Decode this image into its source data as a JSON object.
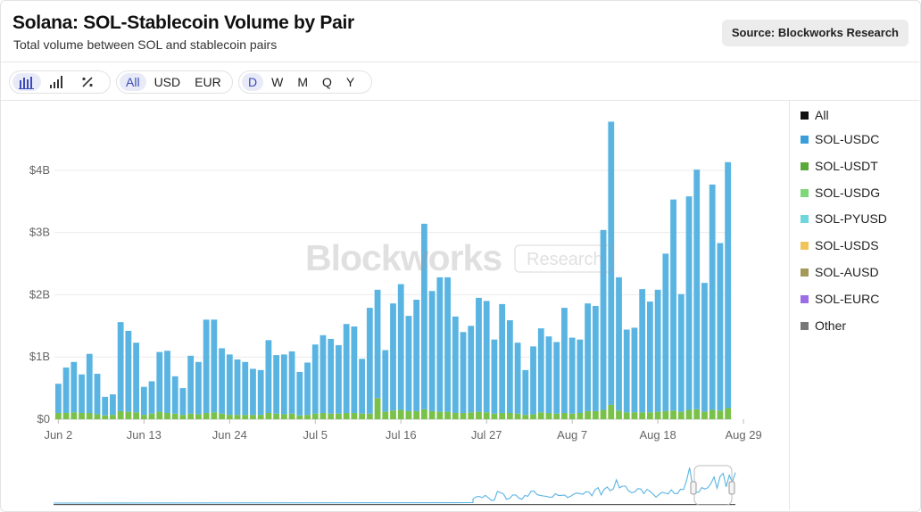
{
  "header": {
    "title": "Solana: SOL-Stablecoin Volume by Pair",
    "subtitle": "Total volume between SOL and stablecoin pairs",
    "source": "Source: Blockworks Research"
  },
  "toolbar": {
    "chart_modes": [
      {
        "icon": "bar-chart-icon",
        "active": true
      },
      {
        "icon": "signal-bars-icon",
        "active": false
      },
      {
        "icon": "percent-icon",
        "active": false
      }
    ],
    "currencies": [
      {
        "label": "All",
        "active": true
      },
      {
        "label": "USD",
        "active": false
      },
      {
        "label": "EUR",
        "active": false
      }
    ],
    "intervals": [
      {
        "label": "D",
        "active": true
      },
      {
        "label": "W",
        "active": false
      },
      {
        "label": "M",
        "active": false
      },
      {
        "label": "Q",
        "active": false
      },
      {
        "label": "Y",
        "active": false
      }
    ]
  },
  "watermark": {
    "brand": "Blockworks",
    "tag": "Research"
  },
  "colors": {
    "usdc": "#5ab4e2",
    "usdt": "#7ac14a",
    "grid": "#ececec",
    "axis_text": "#666666"
  },
  "legend": [
    {
      "label": "All",
      "color": "#111111"
    },
    {
      "label": "SOL-USDC",
      "color": "#3a9ed9"
    },
    {
      "label": "SOL-USDT",
      "color": "#5aa83a"
    },
    {
      "label": "SOL-USDG",
      "color": "#7ed87a"
    },
    {
      "label": "SOL-PYUSD",
      "color": "#6fd6dd"
    },
    {
      "label": "SOL-USDS",
      "color": "#f0c45a"
    },
    {
      "label": "SOL-AUSD",
      "color": "#a39a5a"
    },
    {
      "label": "SOL-EURC",
      "color": "#9b6ee8"
    },
    {
      "label": "Other",
      "color": "#777777"
    }
  ],
  "chart_data": {
    "type": "bar",
    "stacked": true,
    "title": "Solana: SOL-Stablecoin Volume by Pair",
    "subtitle": "Total volume between SOL and stablecoin pairs",
    "unit": "USD",
    "ylim": [
      0,
      4.8
    ],
    "y_ticks": [
      {
        "value": 0,
        "label": "$0"
      },
      {
        "value": 1,
        "label": "$1B"
      },
      {
        "value": 2,
        "label": "$2B"
      },
      {
        "value": 3,
        "label": "$3B"
      },
      {
        "value": 4,
        "label": "$4B"
      }
    ],
    "x_ticks": [
      {
        "index": 0,
        "label": "Jun 2"
      },
      {
        "index": 11,
        "label": "Jun 13"
      },
      {
        "index": 22,
        "label": "Jun 24"
      },
      {
        "index": 33,
        "label": "Jul 5"
      },
      {
        "index": 44,
        "label": "Jul 16"
      },
      {
        "index": 55,
        "label": "Jul 27"
      },
      {
        "index": 66,
        "label": "Aug 7"
      },
      {
        "index": 77,
        "label": "Aug 18"
      },
      {
        "index": 88,
        "label": "Aug 29"
      }
    ],
    "grid": true,
    "legend_position": "right",
    "series": [
      {
        "name": "SOL-USDC",
        "values": [
          0.47,
          0.73,
          0.81,
          0.62,
          0.95,
          0.65,
          0.3,
          0.33,
          1.43,
          1.3,
          1.12,
          0.45,
          0.52,
          0.96,
          1.0,
          0.6,
          0.43,
          0.93,
          0.84,
          1.5,
          1.49,
          1.05,
          0.97,
          0.89,
          0.85,
          0.74,
          0.72,
          1.17,
          0.94,
          0.96,
          1.0,
          0.7,
          0.84,
          1.11,
          1.25,
          1.2,
          1.1,
          1.43,
          1.39,
          0.88,
          1.7,
          1.74,
          0.99,
          1.72,
          2.02,
          1.53,
          1.79,
          2.98,
          1.93,
          2.16,
          2.16,
          1.55,
          1.3,
          1.39,
          1.83,
          1.79,
          1.19,
          1.75,
          1.49,
          1.14,
          0.72,
          1.09,
          1.35,
          1.23,
          1.15,
          1.69,
          1.22,
          1.18,
          1.73,
          1.69,
          2.89,
          4.55,
          2.14,
          1.33,
          1.36,
          1.98,
          1.78,
          1.96,
          2.53,
          3.39,
          1.89,
          3.43,
          3.85,
          2.07,
          3.62,
          2.69,
          3.95
        ]
      },
      {
        "name": "SOL-USDT",
        "values": [
          0.1,
          0.1,
          0.11,
          0.1,
          0.1,
          0.08,
          0.06,
          0.07,
          0.13,
          0.12,
          0.11,
          0.07,
          0.09,
          0.12,
          0.1,
          0.09,
          0.07,
          0.09,
          0.08,
          0.1,
          0.11,
          0.09,
          0.07,
          0.07,
          0.07,
          0.07,
          0.07,
          0.1,
          0.09,
          0.08,
          0.09,
          0.06,
          0.07,
          0.09,
          0.1,
          0.09,
          0.09,
          0.1,
          0.1,
          0.09,
          0.09,
          0.34,
          0.12,
          0.14,
          0.15,
          0.13,
          0.13,
          0.16,
          0.13,
          0.12,
          0.12,
          0.1,
          0.1,
          0.11,
          0.12,
          0.11,
          0.09,
          0.1,
          0.1,
          0.09,
          0.07,
          0.08,
          0.11,
          0.1,
          0.09,
          0.1,
          0.09,
          0.1,
          0.13,
          0.13,
          0.15,
          0.23,
          0.14,
          0.11,
          0.11,
          0.11,
          0.11,
          0.12,
          0.13,
          0.14,
          0.12,
          0.15,
          0.16,
          0.12,
          0.15,
          0.14,
          0.18
        ]
      }
    ]
  }
}
